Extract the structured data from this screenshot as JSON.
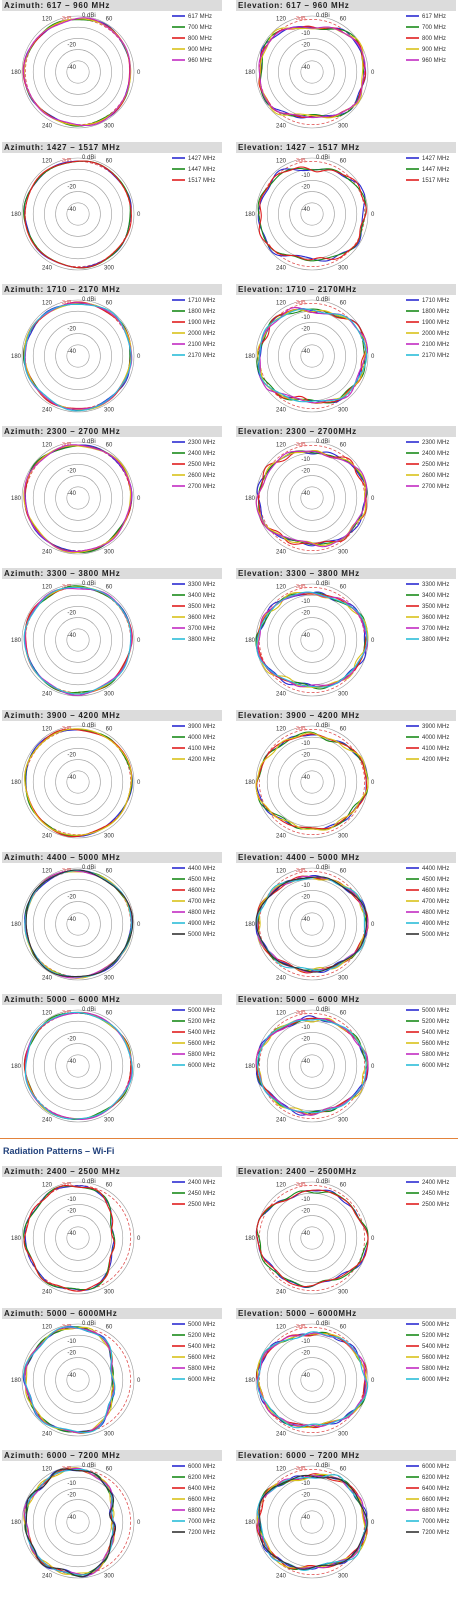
{
  "section_title": "Radiation Patterns – Wi-Fi",
  "polar_labels": {
    "zero": "0 dBi",
    "ref": "-3dB",
    "rings": [
      "-10",
      "-20",
      "-40"
    ],
    "az_rings": [
      "-20",
      "-40"
    ],
    "angles": [
      "60",
      "120",
      "180",
      "240",
      "300",
      "0"
    ]
  },
  "colors": {
    "blue": "#2b2bd1",
    "green": "#1a8a1a",
    "red": "#e01e1e",
    "yellow": "#d9c21a",
    "magenta": "#c22bc2",
    "cyan": "#2bbcd9",
    "black": "#333333",
    "ref": "#e05050"
  },
  "panels": [
    {
      "title": "Azimuth: 617 – 960 MHz",
      "kind": "az",
      "legend": [
        "617 MHz",
        "700 MHz",
        "800 MHz",
        "900 MHz",
        "960 MHz"
      ]
    },
    {
      "title": "Elevation: 617 – 960 MHz",
      "kind": "el",
      "legend": [
        "617 MHz",
        "700 MHz",
        "800 MHz",
        "900 MHz",
        "960 MHz"
      ]
    },
    {
      "title": "Azimuth: 1427 – 1517 MHz",
      "kind": "az",
      "legend": [
        "1427 MHz",
        "1447 MHz",
        "1517 MHz"
      ]
    },
    {
      "title": "Elevation: 1427 – 1517 MHz",
      "kind": "el",
      "legend": [
        "1427 MHz",
        "1447 MHz",
        "1517 MHz"
      ]
    },
    {
      "title": "Azimuth: 1710 – 2170 MHz",
      "kind": "az",
      "legend": [
        "1710 MHz",
        "1800 MHz",
        "1900 MHz",
        "2000 MHz",
        "2100 MHz",
        "2170 MHz"
      ]
    },
    {
      "title": "Elevation: 1710 – 2170MHz",
      "kind": "el",
      "legend": [
        "1710 MHz",
        "1800 MHz",
        "1900 MHz",
        "2000 MHz",
        "2100 MHz",
        "2170 MHz"
      ]
    },
    {
      "title": "Azimuth: 2300 – 2700 MHz",
      "kind": "az",
      "legend": [
        "2300 MHz",
        "2400 MHz",
        "2500 MHz",
        "2600 MHz",
        "2700 MHz"
      ]
    },
    {
      "title": "Elevation: 2300 – 2700MHz",
      "kind": "el",
      "legend": [
        "2300 MHz",
        "2400 MHz",
        "2500 MHz",
        "2600 MHz",
        "2700 MHz"
      ]
    },
    {
      "title": "Azimuth: 3300 – 3800 MHz",
      "kind": "az",
      "legend": [
        "3300 MHz",
        "3400 MHz",
        "3500 MHz",
        "3600 MHz",
        "3700 MHz",
        "3800 MHz"
      ]
    },
    {
      "title": "Elevation: 3300 – 3800 MHz",
      "kind": "el",
      "legend": [
        "3300 MHz",
        "3400 MHz",
        "3500 MHz",
        "3600 MHz",
        "3700 MHz",
        "3800 MHz"
      ]
    },
    {
      "title": "Azimuth: 3900 – 4200 MHz",
      "kind": "az",
      "legend": [
        "3900 MHz",
        "4000 MHz",
        "4100 MHz",
        "4200 MHz"
      ]
    },
    {
      "title": "Elevation: 3900 – 4200 MHz",
      "kind": "el",
      "legend": [
        "3900 MHz",
        "4000 MHz",
        "4100 MHz",
        "4200 MHz"
      ]
    },
    {
      "title": "Azimuth: 4400 – 5000 MHz",
      "kind": "az",
      "legend": [
        "4400 MHz",
        "4500 MHz",
        "4600 MHz",
        "4700 MHz",
        "4800 MHz",
        "4900 MHz",
        "5000 MHz"
      ]
    },
    {
      "title": "Elevation: 4400 – 5000 MHz",
      "kind": "el",
      "legend": [
        "4400 MHz",
        "4500 MHz",
        "4600 MHz",
        "4700 MHz",
        "4800 MHz",
        "4900 MHz",
        "5000 MHz"
      ]
    },
    {
      "title": "Azimuth: 5000 – 6000 MHz",
      "kind": "az",
      "legend": [
        "5000 MHz",
        "5200 MHz",
        "5400 MHz",
        "5600 MHz",
        "5800 MHz",
        "6000 MHz"
      ]
    },
    {
      "title": "Elevation: 5000 – 6000 MHz",
      "kind": "el",
      "legend": [
        "5000 MHz",
        "5200 MHz",
        "5400 MHz",
        "5600 MHz",
        "5800 MHz",
        "6000 MHz"
      ]
    },
    {
      "title": "Azimuth: 2400 – 2500 MHz",
      "kind": "wifi-az",
      "legend": [
        "2400 MHz",
        "2450 MHz",
        "2500 MHz"
      ]
    },
    {
      "title": "Elevation: 2400 – 2500MHz",
      "kind": "el",
      "legend": [
        "2400 MHz",
        "2450 MHz",
        "2500 MHz"
      ]
    },
    {
      "title": "Azimuth: 5000 – 6000MHz",
      "kind": "wifi-az",
      "legend": [
        "5000 MHz",
        "5200 MHz",
        "5400 MHz",
        "5600 MHz",
        "5800 MHz",
        "6000 MHz"
      ]
    },
    {
      "title": "Elevation: 5000 – 6000MHz",
      "kind": "el",
      "legend": [
        "5000 MHz",
        "5200 MHz",
        "5400 MHz",
        "5600 MHz",
        "5800 MHz",
        "6000 MHz"
      ]
    },
    {
      "title": "Azimuth: 6000 – 7200 MHz",
      "kind": "wifi-az",
      "legend": [
        "6000 MHz",
        "6200 MHz",
        "6400 MHz",
        "6600 MHz",
        "6800 MHz",
        "7000 MHz",
        "7200 MHz"
      ]
    },
    {
      "title": "Elevation: 6000 – 7200 MHz",
      "kind": "el",
      "legend": [
        "6000 MHz",
        "6200 MHz",
        "6400 MHz",
        "6600 MHz",
        "6800 MHz",
        "7000 MHz",
        "7200 MHz"
      ]
    }
  ],
  "chart_data": {
    "type": "polar",
    "description_units": "gain in dBi vs angle in degrees",
    "rlim": [
      -50,
      0
    ],
    "ring_values": [
      -40,
      -30,
      -20,
      -10,
      0
    ],
    "angle_ticks": [
      0,
      60,
      120,
      180,
      240,
      300
    ],
    "reference_level": -3
  }
}
